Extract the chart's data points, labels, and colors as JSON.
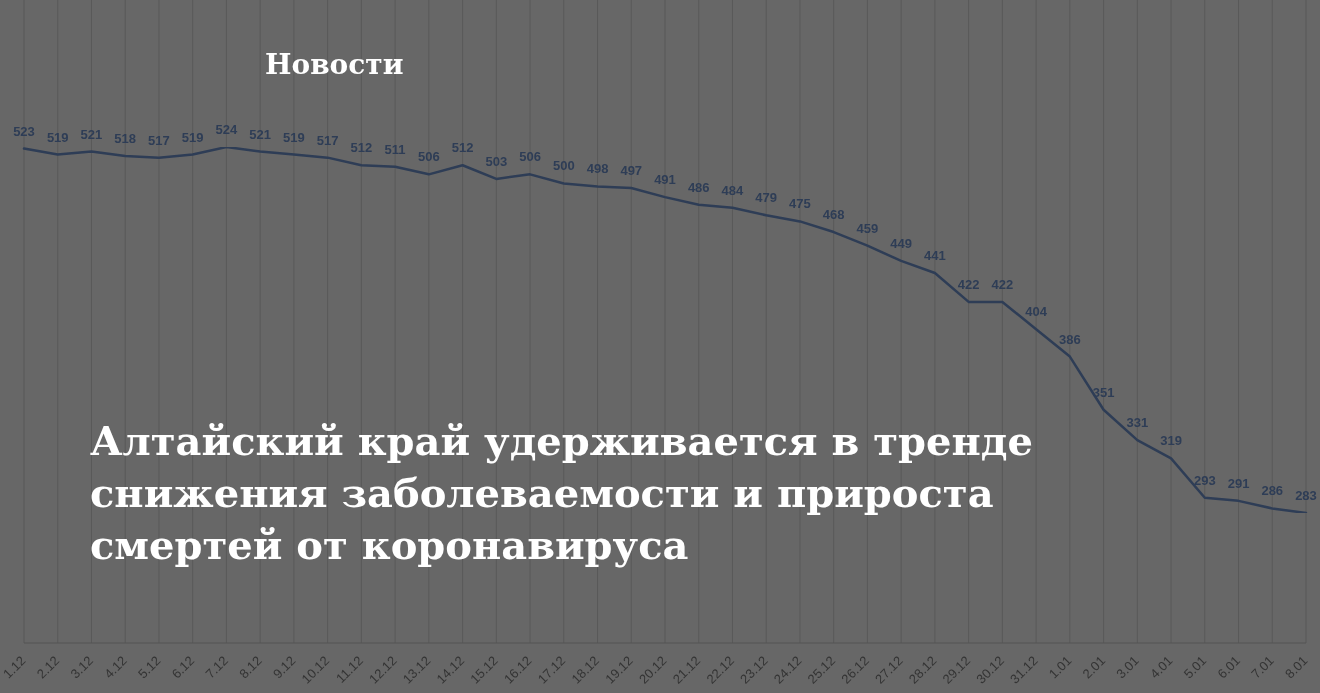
{
  "chart_data": {
    "type": "line",
    "title": "Алтайский край удерживается в тренде снижения заболеваемости и прироста смертей от коронавируса",
    "annotations": [
      "Новости"
    ],
    "categories": [
      "1.12",
      "2.12",
      "3.12",
      "4.12",
      "5.12",
      "6.12",
      "7.12",
      "8.12",
      "9.12",
      "10.12",
      "11.12",
      "12.12",
      "13.12",
      "14.12",
      "15.12",
      "16.12",
      "17.12",
      "18.12",
      "19.12",
      "20.12",
      "21.12",
      "22.12",
      "23.12",
      "24.12",
      "25.12",
      "26.12",
      "27.12",
      "28.12",
      "29.12",
      "30.12",
      "31.12",
      "1.01",
      "2.01",
      "3.01",
      "4.01",
      "5.01",
      "6.01",
      "7.01",
      "8.01"
    ],
    "series": [
      {
        "color": "#2e3d56",
        "values": [
          523,
          519,
          521,
          518,
          517,
          519,
          524,
          521,
          519,
          517,
          512,
          511,
          506,
          512,
          503,
          506,
          500,
          498,
          497,
          491,
          486,
          484,
          479,
          475,
          468,
          459,
          449,
          441,
          422,
          422,
          404,
          386,
          351,
          331,
          319,
          293,
          291,
          286,
          283
        ]
      }
    ],
    "grid": "x",
    "tick_labels": "x",
    "marker": "none",
    "data_labels": true
  }
}
